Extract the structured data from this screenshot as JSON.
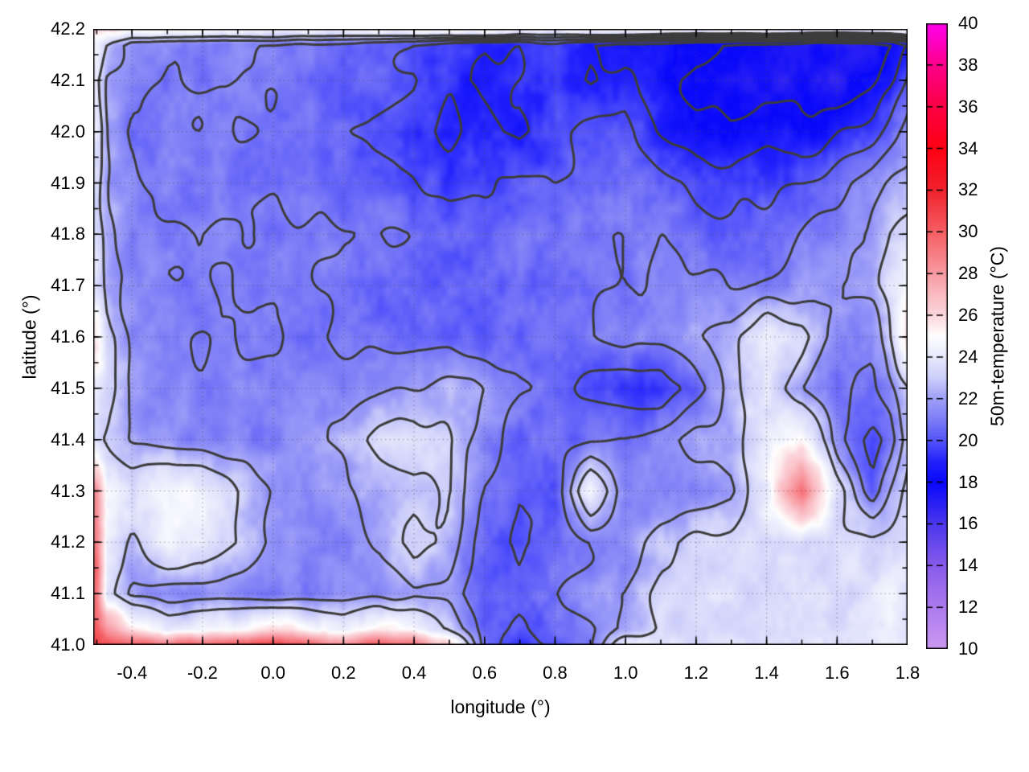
{
  "chart_data": {
    "type": "heatmap",
    "xlabel": "longitude (°)",
    "ylabel": "latitude (°)",
    "colorbar_label": "50m-temperature (°C)",
    "xlim": [
      -0.51,
      1.8
    ],
    "ylim": [
      41.0,
      42.2
    ],
    "zlim": [
      10,
      40
    ],
    "grid": true,
    "x_ticks": {
      "values": [
        -0.4,
        -0.2,
        0.0,
        0.2,
        0.4,
        0.6,
        0.8,
        1.0,
        1.2,
        1.4,
        1.6,
        1.8
      ],
      "labels": [
        "-0.4",
        "-0.2",
        "0.0",
        "0.2",
        "0.4",
        "0.6",
        "0.8",
        "1.0",
        "1.2",
        "1.4",
        "1.6",
        "1.8"
      ],
      "minor_step": 0.1
    },
    "y_ticks": {
      "values": [
        41.0,
        41.1,
        41.2,
        41.3,
        41.4,
        41.5,
        41.6,
        41.7,
        41.8,
        41.9,
        42.0,
        42.1,
        42.2
      ],
      "labels": [
        "41.0",
        "41.1",
        "41.2",
        "41.3",
        "41.4",
        "41.5",
        "41.6",
        "41.7",
        "41.8",
        "41.9",
        "42.0",
        "42.1",
        "42.2"
      ],
      "minor_step": 0.05
    },
    "colorbar_ticks": {
      "values": [
        10,
        12,
        14,
        16,
        18,
        20,
        22,
        24,
        26,
        28,
        30,
        32,
        34,
        36,
        38,
        40
      ],
      "labels": [
        "10",
        "12",
        "14",
        "16",
        "18",
        "20",
        "22",
        "24",
        "26",
        "28",
        "30",
        "32",
        "34",
        "36",
        "38",
        "40"
      ]
    },
    "palette_stops": [
      {
        "v": 10,
        "c": "#cc9af2"
      },
      {
        "v": 12,
        "c": "#ad7bee"
      },
      {
        "v": 14,
        "c": "#885ceb"
      },
      {
        "v": 16,
        "c": "#4c38ef"
      },
      {
        "v": 18,
        "c": "#0808fa"
      },
      {
        "v": 19,
        "c": "#2323fc"
      },
      {
        "v": 20,
        "c": "#5555fa"
      },
      {
        "v": 21,
        "c": "#7d7df7"
      },
      {
        "v": 22,
        "c": "#a0a0f8"
      },
      {
        "v": 23,
        "c": "#cdcffa"
      },
      {
        "v": 24,
        "c": "#e8e9fc"
      },
      {
        "v": 25,
        "c": "#ffffff"
      },
      {
        "v": 26,
        "c": "#fcd7dc"
      },
      {
        "v": 27,
        "c": "#fabbc2"
      },
      {
        "v": 28,
        "c": "#f89ba3"
      },
      {
        "v": 30,
        "c": "#f55f64"
      },
      {
        "v": 32,
        "c": "#f0232d"
      },
      {
        "v": 34,
        "c": "#ff0014"
      },
      {
        "v": 36,
        "c": "#fc0046"
      },
      {
        "v": 38,
        "c": "#fd008c"
      },
      {
        "v": 40,
        "c": "#ff00ee"
      }
    ],
    "contour_levels": [
      18,
      19,
      20,
      21,
      22,
      23
    ],
    "contour_color": "#3c3c3c",
    "lons": [
      -0.5,
      -0.47,
      -0.4,
      -0.3,
      -0.2,
      -0.1,
      0.0,
      0.1,
      0.2,
      0.3,
      0.4,
      0.5,
      0.6,
      0.7,
      0.8,
      0.9,
      1.0,
      1.1,
      1.2,
      1.3,
      1.4,
      1.5,
      1.6,
      1.7,
      1.75,
      1.8
    ],
    "lats_north_to_south": [
      42.2,
      42.17,
      42.1,
      42.0,
      41.9,
      41.8,
      41.7,
      41.6,
      41.5,
      41.4,
      41.3,
      41.2,
      41.1,
      41.03,
      41.0
    ],
    "values_north_to_south": [
      [
        26.3,
        26.0,
        25.3,
        25.0,
        25.0,
        25.0,
        25.2,
        25.0,
        24.8,
        25.0,
        25.2,
        25.6,
        25.8,
        25.2,
        25.0,
        25.6,
        25.8,
        25.2,
        24.8,
        25.0,
        25.2,
        25.0,
        24.6,
        25.0,
        25.2,
        25.5
      ],
      [
        24.5,
        23.0,
        21.5,
        21.2,
        21.0,
        21.0,
        21.0,
        20.8,
        20.6,
        20.5,
        20.0,
        19.4,
        19.0,
        19.2,
        19.6,
        19.0,
        18.6,
        18.5,
        18.0,
        17.8,
        17.5,
        17.4,
        17.2,
        17.5,
        18.0,
        19.0
      ],
      [
        23.5,
        22.0,
        21.5,
        21.0,
        21.0,
        21.0,
        20.8,
        20.6,
        20.5,
        20.3,
        20.0,
        19.2,
        18.6,
        19.0,
        19.5,
        18.8,
        19.4,
        18.4,
        17.8,
        17.5,
        17.3,
        17.5,
        17.2,
        17.8,
        18.5,
        20.0
      ],
      [
        24.0,
        22.0,
        21.0,
        20.8,
        20.8,
        21.0,
        20.8,
        20.5,
        20.3,
        19.8,
        19.3,
        18.8,
        19.5,
        18.8,
        19.8,
        20.3,
        20.5,
        19.0,
        18.3,
        18.0,
        18.5,
        18.2,
        18.8,
        19.5,
        20.5,
        21.5
      ],
      [
        23.5,
        22.0,
        21.2,
        21.0,
        20.8,
        20.8,
        20.8,
        20.8,
        20.6,
        20.5,
        20.0,
        19.5,
        19.8,
        20.3,
        20.0,
        20.5,
        20.8,
        20.5,
        19.8,
        19.5,
        19.8,
        20.0,
        20.5,
        21.5,
        22.0,
        22.5
      ],
      [
        23.5,
        22.3,
        21.3,
        21.0,
        21.0,
        21.0,
        21.0,
        21.0,
        21.0,
        21.0,
        20.8,
        20.5,
        20.5,
        20.8,
        20.8,
        21.0,
        21.0,
        21.0,
        20.5,
        20.3,
        20.5,
        21.0,
        21.5,
        22.3,
        23.0,
        23.5
      ],
      [
        24.0,
        22.5,
        21.4,
        21.2,
        21.0,
        21.0,
        21.0,
        21.0,
        20.8,
        20.6,
        20.5,
        20.3,
        20.3,
        20.5,
        20.5,
        20.8,
        21.0,
        21.2,
        21.3,
        21.0,
        21.3,
        21.5,
        22.0,
        22.5,
        23.5,
        25.3
      ],
      [
        25.5,
        23.5,
        21.6,
        21.2,
        21.0,
        21.0,
        21.0,
        21.0,
        20.8,
        20.6,
        20.5,
        20.5,
        20.3,
        20.5,
        20.5,
        20.8,
        21.3,
        21.5,
        22.0,
        22.5,
        24.2,
        23.5,
        21.5,
        21.0,
        23.0,
        26.3
      ],
      [
        24.5,
        23.5,
        21.8,
        21.3,
        21.2,
        21.2,
        21.3,
        21.3,
        21.5,
        21.8,
        22.0,
        22.3,
        22.0,
        21.0,
        20.5,
        19.8,
        19.3,
        19.0,
        20.5,
        22.5,
        23.8,
        22.0,
        21.0,
        20.8,
        21.5,
        23.0
      ],
      [
        23.5,
        23.0,
        22.0,
        21.5,
        21.3,
        21.3,
        21.3,
        21.5,
        22.3,
        23.3,
        23.8,
        23.0,
        21.5,
        20.5,
        20.5,
        20.8,
        21.0,
        21.5,
        22.3,
        22.5,
        24.0,
        25.5,
        21.5,
        19.5,
        20.5,
        22.5
      ],
      [
        28.0,
        24.5,
        24.0,
        24.8,
        24.5,
        23.0,
        21.8,
        21.5,
        21.8,
        22.3,
        22.8,
        23.0,
        21.0,
        20.0,
        20.3,
        24.5,
        21.3,
        21.0,
        21.3,
        22.0,
        24.5,
        29.5,
        23.5,
        20.5,
        22.0,
        23.5
      ],
      [
        29.0,
        24.0,
        22.5,
        24.5,
        24.3,
        23.0,
        21.8,
        21.5,
        21.3,
        22.0,
        23.5,
        22.5,
        20.3,
        20.0,
        20.5,
        21.0,
        21.5,
        22.8,
        23.3,
        23.3,
        23.5,
        23.5,
        23.3,
        23.3,
        23.5,
        23.8
      ],
      [
        29.5,
        23.5,
        21.8,
        21.5,
        21.5,
        21.3,
        21.0,
        21.2,
        21.3,
        21.5,
        21.8,
        21.5,
        20.3,
        20.3,
        21.0,
        21.5,
        22.0,
        23.3,
        23.5,
        23.5,
        23.5,
        23.5,
        23.5,
        23.8,
        24.0,
        24.0
      ],
      [
        30.0,
        28.0,
        26.0,
        24.0,
        24.5,
        25.0,
        26.0,
        25.0,
        24.0,
        25.5,
        24.5,
        23.0,
        20.5,
        20.0,
        20.5,
        21.0,
        22.0,
        23.3,
        23.5,
        23.5,
        23.5,
        23.5,
        23.5,
        23.8,
        24.0,
        24.0
      ],
      [
        30.5,
        30.5,
        30.0,
        29.5,
        30.0,
        30.5,
        31.0,
        30.0,
        28.5,
        30.5,
        29.5,
        26.0,
        20.5,
        19.5,
        20.0,
        21.0,
        24.0,
        23.8,
        23.8,
        23.8,
        23.8,
        23.8,
        23.8,
        24.0,
        24.0,
        24.0
      ]
    ]
  }
}
